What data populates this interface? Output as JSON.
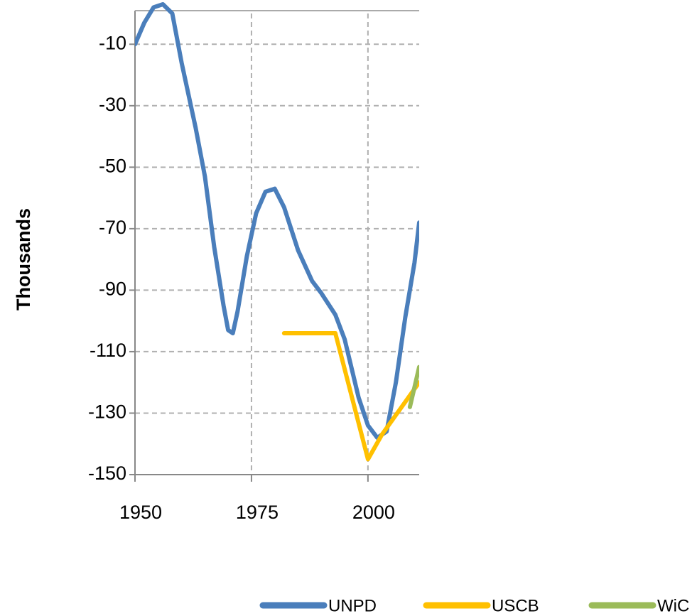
{
  "chart_data": {
    "type": "line",
    "y_label": "Thousands",
    "xlim": [
      1950,
      2011
    ],
    "xticks": [
      1950,
      1975,
      2000
    ],
    "ylim": [
      -150,
      0
    ],
    "yticks": [
      -150,
      -130,
      -110,
      -90,
      -70,
      -50,
      -30,
      -10
    ],
    "grid": true,
    "legend": "bottom",
    "series": [
      {
        "name": "UNPD",
        "color": "#4a7ebb",
        "x": [
          1950,
          1952,
          1954,
          1956,
          1958,
          1960,
          1963,
          1965,
          1967,
          1969,
          1970,
          1971,
          1972,
          1974,
          1976,
          1978,
          1980,
          1982,
          1985,
          1988,
          1990,
          1993,
          1995,
          1998,
          2000,
          2002,
          2004,
          2006,
          2008,
          2010,
          2011
        ],
        "values": [
          -10,
          -3,
          2,
          3,
          0,
          -16,
          -37,
          -53,
          -76,
          -95,
          -103,
          -104,
          -97,
          -79,
          -65,
          -58,
          -57,
          -63,
          -77,
          -87,
          -91,
          -98,
          -106,
          -125,
          -134,
          -138,
          -136,
          -120,
          -99,
          -81,
          -68
        ]
      },
      {
        "name": "USCB",
        "color": "#ffc000",
        "x": [
          1982,
          1993,
          2000,
          2003,
          2011
        ],
        "values": [
          -104,
          -104,
          -145,
          -137,
          -120
        ]
      },
      {
        "name": "WiC",
        "color": "#9bbb59",
        "x": [
          2009,
          2011
        ],
        "values": [
          -128,
          -115
        ]
      }
    ]
  }
}
